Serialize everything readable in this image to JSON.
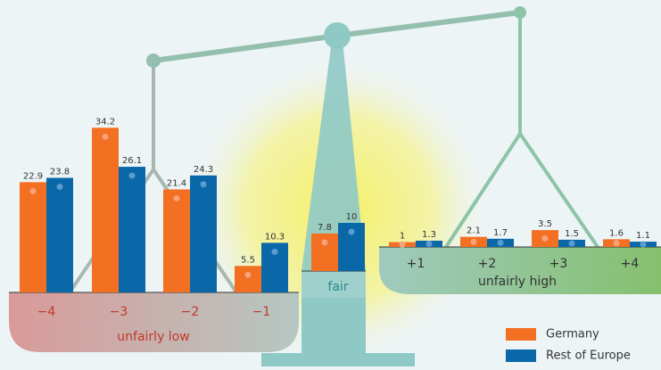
{
  "chart_data": {
    "type": "bar",
    "categories": [
      "−4",
      "−3",
      "−2",
      "−1",
      "fair",
      "+1",
      "+2",
      "+3",
      "+4"
    ],
    "series": [
      {
        "name": "Germany",
        "color": "#f36f21",
        "values": [
          22.9,
          34.2,
          21.4,
          5.5,
          7.8,
          1.0,
          2.1,
          3.5,
          1.6
        ]
      },
      {
        "name": "Rest of Europe",
        "color": "#0a68a8",
        "values": [
          23.8,
          26.1,
          24.3,
          10.3,
          10.0,
          1.3,
          1.7,
          1.5,
          1.1
        ]
      }
    ],
    "annotations": [
      "unfairly low",
      "unfairly high"
    ]
  }
}
